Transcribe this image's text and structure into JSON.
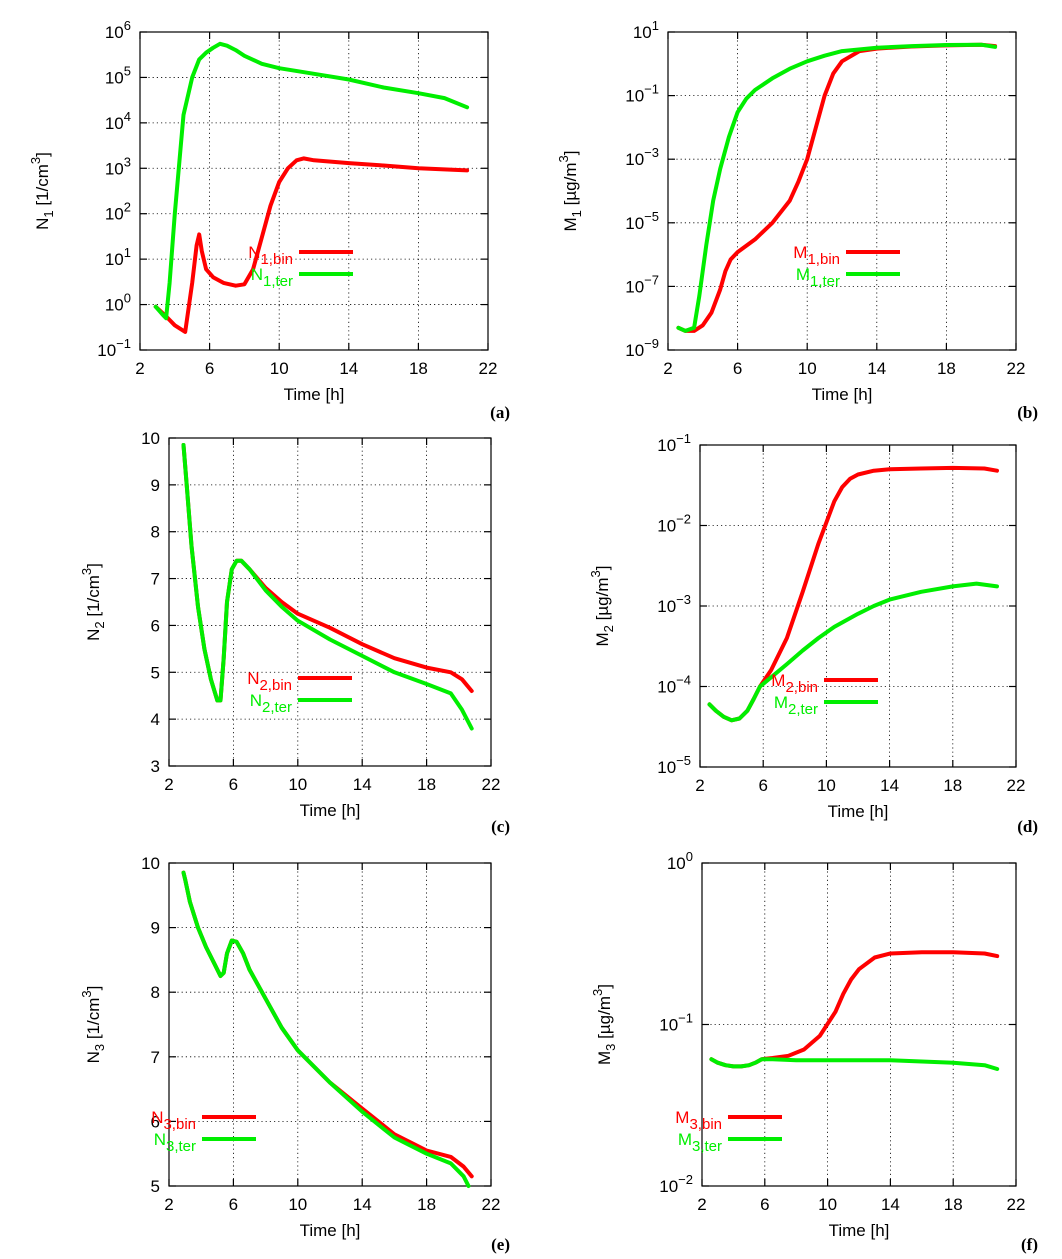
{
  "colors": {
    "bin": "#ff0000",
    "ter": "#00ee00"
  },
  "chart_data": [
    {
      "panel": "(a)",
      "type": "line",
      "yscale": "log",
      "xlabel": "Time [h]",
      "ylabel": "N1 [1/cm3]",
      "ylabel_parts": {
        "base": "N",
        "sub": "1",
        "unit_pre": " [1/cm",
        "sup": "3",
        "unit_post": "]"
      },
      "xlim": [
        2,
        22
      ],
      "ylim": [
        0.1,
        1000000
      ],
      "xticks": [
        2,
        6,
        10,
        14,
        18,
        22
      ],
      "yticks": [
        {
          "value": 0.1,
          "base": "10",
          "exp": "−1"
        },
        {
          "value": 1,
          "base": "10",
          "exp": "0"
        },
        {
          "value": 10,
          "base": "10",
          "exp": "1"
        },
        {
          "value": 100,
          "base": "10",
          "exp": "2"
        },
        {
          "value": 1000,
          "base": "10",
          "exp": "3"
        },
        {
          "value": 10000,
          "base": "10",
          "exp": "4"
        },
        {
          "value": 100000,
          "base": "10",
          "exp": "5"
        },
        {
          "value": 1000000,
          "base": "10",
          "exp": "6"
        }
      ],
      "series": [
        {
          "name": "N1,bin",
          "label_base": "N",
          "label_sub": "1,bin",
          "color": "#ff0000",
          "x": [
            2.9,
            3.5,
            4.0,
            4.6,
            5.0,
            5.25,
            5.4,
            5.55,
            5.8,
            6.2,
            6.8,
            7.5,
            8.0,
            8.5,
            9.0,
            9.5,
            10.0,
            10.5,
            11.0,
            11.4,
            12.0,
            14.0,
            16.0,
            18.0,
            20.8
          ],
          "y": [
            0.9,
            0.55,
            0.35,
            0.25,
            3,
            20,
            35,
            15,
            6,
            4,
            3,
            2.6,
            2.8,
            6,
            30,
            150,
            500,
            1000,
            1500,
            1650,
            1500,
            1300,
            1150,
            1000,
            900
          ]
        },
        {
          "name": "N1,ter",
          "label_base": "N",
          "label_sub": "1,ter",
          "color": "#00ee00",
          "x": [
            2.9,
            3.3,
            3.5,
            3.7,
            4.0,
            4.5,
            5.0,
            5.4,
            5.8,
            6.2,
            6.6,
            7.0,
            7.5,
            8.0,
            9.0,
            10.0,
            12.0,
            14.0,
            16.0,
            18.0,
            19.5,
            20.8
          ],
          "y": [
            0.9,
            0.6,
            0.5,
            3,
            100,
            15000,
            100000,
            250000,
            350000,
            450000,
            550000,
            500000,
            400000,
            300000,
            200000,
            160000,
            120000,
            90000,
            60000,
            45000,
            35000,
            22000
          ]
        }
      ]
    },
    {
      "panel": "(b)",
      "type": "line",
      "yscale": "log",
      "xlabel": "Time [h]",
      "ylabel": "M1 [µg/m3]",
      "ylabel_parts": {
        "base": "M",
        "sub": "1",
        "unit_pre": " [µg/m",
        "sup": "3",
        "unit_post": "]"
      },
      "xlim": [
        2,
        22
      ],
      "ylim": [
        1e-09,
        10
      ],
      "xticks": [
        2,
        6,
        10,
        14,
        18,
        22
      ],
      "yticks": [
        {
          "value": 1e-09,
          "base": "10",
          "exp": "−9"
        },
        {
          "value": 1e-07,
          "base": "10",
          "exp": "−7"
        },
        {
          "value": 1e-05,
          "base": "10",
          "exp": "−5"
        },
        {
          "value": 0.001,
          "base": "10",
          "exp": "−3"
        },
        {
          "value": 0.1,
          "base": "10",
          "exp": "−1"
        },
        {
          "value": 10,
          "base": "10",
          "exp": "1"
        }
      ],
      "series": [
        {
          "name": "M1,bin",
          "label_base": "M",
          "label_sub": "1,bin",
          "color": "#ff0000",
          "x": [
            2.6,
            3.0,
            3.5,
            4.0,
            4.5,
            5.0,
            5.3,
            5.6,
            6.0,
            7.0,
            8.0,
            9.0,
            9.5,
            10.0,
            10.5,
            11.0,
            11.5,
            12.0,
            13.0,
            14.0,
            16.0,
            18.0,
            20.0,
            20.8
          ],
          "y": [
            5e-09,
            4e-09,
            4e-09,
            6e-09,
            1.5e-08,
            8e-08,
            3e-07,
            7e-07,
            1.2e-06,
            3e-06,
            1e-05,
            5e-05,
            0.0002,
            0.001,
            0.01,
            0.1,
            0.5,
            1.2,
            2.5,
            3.0,
            3.5,
            3.8,
            4.0,
            3.6
          ]
        },
        {
          "name": "M1,ter",
          "label_base": "M",
          "label_sub": "1,ter",
          "color": "#00ee00",
          "x": [
            2.6,
            3.0,
            3.5,
            3.8,
            4.2,
            4.6,
            5.0,
            5.5,
            6.0,
            6.5,
            7.0,
            8.0,
            9.0,
            10.0,
            11.0,
            12.0,
            14.0,
            16.0,
            18.0,
            20.0,
            20.8
          ],
          "y": [
            5e-09,
            4e-09,
            5e-09,
            5e-08,
            2e-06,
            5e-05,
            0.0005,
            0.005,
            0.03,
            0.08,
            0.15,
            0.35,
            0.7,
            1.2,
            1.8,
            2.5,
            3.2,
            3.6,
            3.9,
            4.0,
            3.4
          ]
        }
      ]
    },
    {
      "panel": "(c)",
      "type": "line",
      "yscale": "linear",
      "xlabel": "Time [h]",
      "ylabel": "N2 [1/cm3]",
      "ylabel_parts": {
        "base": "N",
        "sub": "2",
        "unit_pre": " [1/cm",
        "sup": "3",
        "unit_post": "]"
      },
      "xlim": [
        2,
        22
      ],
      "ylim": [
        3,
        10
      ],
      "xticks": [
        2,
        6,
        10,
        14,
        18,
        22
      ],
      "yticks": [
        {
          "value": 3,
          "text": "3"
        },
        {
          "value": 4,
          "text": "4"
        },
        {
          "value": 5,
          "text": "5"
        },
        {
          "value": 6,
          "text": "6"
        },
        {
          "value": 7,
          "text": "7"
        },
        {
          "value": 8,
          "text": "8"
        },
        {
          "value": 9,
          "text": "9"
        },
        {
          "value": 10,
          "text": "10"
        }
      ],
      "series": [
        {
          "name": "N2,bin",
          "label_base": "N",
          "label_sub": "2,bin",
          "color": "#ff0000",
          "x": [
            2.9,
            3.1,
            3.4,
            3.8,
            4.2,
            4.6,
            5.0,
            5.2,
            5.4,
            5.6,
            5.9,
            6.2,
            6.5,
            7.0,
            8.0,
            9.0,
            10.0,
            12.0,
            14.0,
            16.0,
            18.0,
            19.5,
            20.2,
            20.8
          ],
          "y": [
            9.85,
            9.0,
            7.7,
            6.4,
            5.5,
            4.85,
            4.4,
            4.4,
            5.3,
            6.5,
            7.2,
            7.38,
            7.38,
            7.2,
            6.8,
            6.5,
            6.25,
            5.95,
            5.6,
            5.3,
            5.1,
            5.0,
            4.85,
            4.6
          ]
        },
        {
          "name": "N2,ter",
          "label_base": "N",
          "label_sub": "2,ter",
          "color": "#00ee00",
          "x": [
            2.9,
            3.1,
            3.4,
            3.8,
            4.2,
            4.6,
            5.0,
            5.2,
            5.4,
            5.6,
            5.9,
            6.2,
            6.5,
            7.0,
            8.0,
            9.0,
            10.0,
            12.0,
            14.0,
            16.0,
            18.0,
            19.5,
            20.2,
            20.8
          ],
          "y": [
            9.85,
            9.0,
            7.7,
            6.4,
            5.5,
            4.85,
            4.4,
            4.4,
            5.3,
            6.5,
            7.2,
            7.38,
            7.38,
            7.2,
            6.75,
            6.4,
            6.1,
            5.7,
            5.35,
            5.0,
            4.75,
            4.55,
            4.2,
            3.8
          ]
        }
      ]
    },
    {
      "panel": "(d)",
      "type": "line",
      "yscale": "log",
      "xlabel": "Time [h]",
      "ylabel": "M2 [µg/m3]",
      "ylabel_parts": {
        "base": "M",
        "sub": "2",
        "unit_pre": " [µg/m",
        "sup": "3",
        "unit_post": "]"
      },
      "xlim": [
        2,
        22
      ],
      "ylim": [
        1e-05,
        0.1
      ],
      "xticks": [
        2,
        6,
        10,
        14,
        18,
        22
      ],
      "yticks": [
        {
          "value": 1e-05,
          "base": "10",
          "exp": "−5"
        },
        {
          "value": 0.0001,
          "base": "10",
          "exp": "−4"
        },
        {
          "value": 0.001,
          "base": "10",
          "exp": "−3"
        },
        {
          "value": 0.01,
          "base": "10",
          "exp": "−2"
        },
        {
          "value": 0.1,
          "base": "10",
          "exp": "−1"
        }
      ],
      "series": [
        {
          "name": "M2,bin",
          "label_base": "M",
          "label_sub": "2,bin",
          "color": "#ff0000",
          "x": [
            2.6,
            3.0,
            3.5,
            4.0,
            4.5,
            5.0,
            5.4,
            5.8,
            6.5,
            7.5,
            8.5,
            9.5,
            10.5,
            11.0,
            11.5,
            12.0,
            13.0,
            14.0,
            16.0,
            18.0,
            20.0,
            20.8
          ],
          "y": [
            6e-05,
            5e-05,
            4.2e-05,
            3.8e-05,
            4e-05,
            5e-05,
            7e-05,
            0.0001,
            0.00016,
            0.0004,
            0.0015,
            0.006,
            0.02,
            0.03,
            0.038,
            0.043,
            0.048,
            0.05,
            0.051,
            0.052,
            0.051,
            0.048
          ]
        },
        {
          "name": "M2,ter",
          "label_base": "M",
          "label_sub": "2,ter",
          "color": "#00ee00",
          "x": [
            2.6,
            3.0,
            3.5,
            4.0,
            4.5,
            5.0,
            5.4,
            5.8,
            6.5,
            7.5,
            8.5,
            9.5,
            10.5,
            12.0,
            13.0,
            14.0,
            16.0,
            18.0,
            19.5,
            20.8
          ],
          "y": [
            6e-05,
            5e-05,
            4.2e-05,
            3.8e-05,
            4e-05,
            5e-05,
            7e-05,
            0.0001,
            0.00013,
            0.00019,
            0.00028,
            0.0004,
            0.00055,
            0.0008,
            0.001,
            0.0012,
            0.0015,
            0.00175,
            0.0019,
            0.00175
          ]
        }
      ]
    },
    {
      "panel": "(e)",
      "type": "line",
      "yscale": "linear",
      "xlabel": "Time [h]",
      "ylabel": "N3 [1/cm3]",
      "ylabel_parts": {
        "base": "N",
        "sub": "3",
        "unit_pre": " [1/cm",
        "sup": "3",
        "unit_post": "]"
      },
      "xlim": [
        2,
        22
      ],
      "ylim": [
        5,
        10
      ],
      "xticks": [
        2,
        6,
        10,
        14,
        18,
        22
      ],
      "yticks": [
        {
          "value": 5,
          "text": "5"
        },
        {
          "value": 6,
          "text": "6"
        },
        {
          "value": 7,
          "text": "7"
        },
        {
          "value": 8,
          "text": "8"
        },
        {
          "value": 9,
          "text": "9"
        },
        {
          "value": 10,
          "text": "10"
        }
      ],
      "series": [
        {
          "name": "N3,bin",
          "label_base": "N",
          "label_sub": "3,bin",
          "color": "#ff0000",
          "x": [
            2.9,
            3.0,
            3.3,
            3.8,
            4.3,
            4.8,
            5.2,
            5.4,
            5.6,
            5.9,
            6.2,
            6.6,
            7.0,
            8.0,
            9.0,
            10.0,
            12.0,
            14.0,
            16.0,
            18.0,
            19.5,
            20.3,
            20.8
          ],
          "y": [
            9.85,
            9.75,
            9.4,
            9.0,
            8.7,
            8.45,
            8.25,
            8.3,
            8.6,
            8.8,
            8.78,
            8.6,
            8.35,
            7.9,
            7.45,
            7.1,
            6.6,
            6.2,
            5.8,
            5.55,
            5.45,
            5.3,
            5.15
          ]
        },
        {
          "name": "N3,ter",
          "label_base": "N",
          "label_sub": "3,ter",
          "color": "#00ee00",
          "x": [
            2.9,
            3.0,
            3.3,
            3.8,
            4.3,
            4.8,
            5.2,
            5.4,
            5.6,
            5.9,
            6.2,
            6.6,
            7.0,
            8.0,
            9.0,
            10.0,
            12.0,
            14.0,
            16.0,
            18.0,
            19.5,
            20.3,
            20.6
          ],
          "y": [
            9.85,
            9.75,
            9.4,
            9.0,
            8.7,
            8.45,
            8.25,
            8.3,
            8.6,
            8.8,
            8.78,
            8.6,
            8.35,
            7.9,
            7.45,
            7.1,
            6.6,
            6.15,
            5.75,
            5.5,
            5.35,
            5.15,
            5.0
          ]
        }
      ]
    },
    {
      "panel": "(f)",
      "type": "line",
      "yscale": "log",
      "xlabel": "Time [h]",
      "ylabel": "M3 [µg/m3]",
      "ylabel_parts": {
        "base": "M",
        "sub": "3",
        "unit_pre": " [µg/m",
        "sup": "3",
        "unit_post": "]"
      },
      "xlim": [
        2,
        22
      ],
      "ylim": [
        0.01,
        1
      ],
      "xticks": [
        2,
        6,
        10,
        14,
        18,
        22
      ],
      "yticks": [
        {
          "value": 0.01,
          "base": "10",
          "exp": "−2"
        },
        {
          "value": 0.1,
          "base": "10",
          "exp": "−1"
        },
        {
          "value": 1,
          "base": "10",
          "exp": "0"
        }
      ],
      "series": [
        {
          "name": "M3,bin",
          "label_base": "M",
          "label_sub": "3,bin",
          "color": "#ff0000",
          "x": [
            2.6,
            3.0,
            3.5,
            4.0,
            4.5,
            5.0,
            5.4,
            5.8,
            6.5,
            7.5,
            8.5,
            9.5,
            10.5,
            11.0,
            11.5,
            12.0,
            13.0,
            14.0,
            16.0,
            18.0,
            20.0,
            20.8
          ],
          "y": [
            0.061,
            0.058,
            0.056,
            0.055,
            0.055,
            0.056,
            0.058,
            0.061,
            0.062,
            0.064,
            0.07,
            0.085,
            0.12,
            0.155,
            0.19,
            0.22,
            0.26,
            0.275,
            0.28,
            0.28,
            0.275,
            0.265
          ]
        },
        {
          "name": "M3,ter",
          "label_base": "M",
          "label_sub": "3,ter",
          "color": "#00ee00",
          "x": [
            2.6,
            3.0,
            3.5,
            4.0,
            4.5,
            5.0,
            5.4,
            5.8,
            6.5,
            8.0,
            10.0,
            12.0,
            14.0,
            16.0,
            18.0,
            20.0,
            20.8
          ],
          "y": [
            0.061,
            0.058,
            0.056,
            0.055,
            0.055,
            0.056,
            0.058,
            0.061,
            0.061,
            0.06,
            0.06,
            0.06,
            0.06,
            0.059,
            0.058,
            0.056,
            0.053
          ]
        }
      ]
    }
  ]
}
